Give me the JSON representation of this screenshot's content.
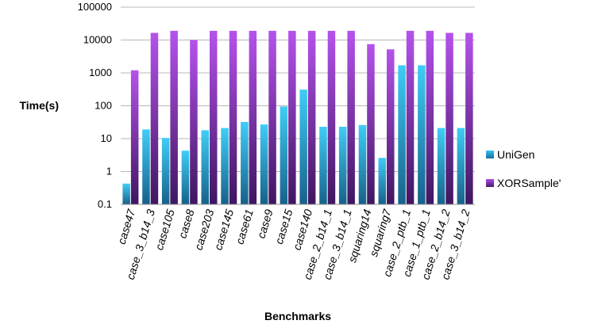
{
  "chart_data": {
    "type": "bar",
    "title": "",
    "xlabel": "Benchmarks",
    "ylabel": "Time(s)",
    "yscale": "log",
    "ylim": [
      0.1,
      100000
    ],
    "yticks": [
      "0.1",
      "1",
      "10",
      "100",
      "1000",
      "10000",
      "100000"
    ],
    "grid": true,
    "legend_position": "right",
    "categories": [
      "case47",
      "case_3_b14_3",
      "case105",
      "case8",
      "case203",
      "case145",
      "case61",
      "case9",
      "case15",
      "case140",
      "case_2_b14_1",
      "case_3_b14_1",
      "squaring14",
      "squaring7",
      "case_2_ptb_1",
      "case_1_ptb_1",
      "case_2_b14_2",
      "case_3_b14_2"
    ],
    "series": [
      {
        "name": "UniGen",
        "color": "#29abe2",
        "values": [
          0.43,
          19,
          10.5,
          4.3,
          18,
          21,
          32,
          27,
          95,
          310,
          23,
          23,
          26,
          2.6,
          1700,
          1700,
          21,
          21
        ]
      },
      {
        "name": "XORSample'",
        "color": "#8e3fc6",
        "values": [
          1200,
          16500,
          19000,
          10000,
          19000,
          19000,
          19000,
          19000,
          19000,
          19000,
          19000,
          19000,
          7500,
          5200,
          19000,
          19000,
          16500,
          16500
        ]
      }
    ]
  }
}
